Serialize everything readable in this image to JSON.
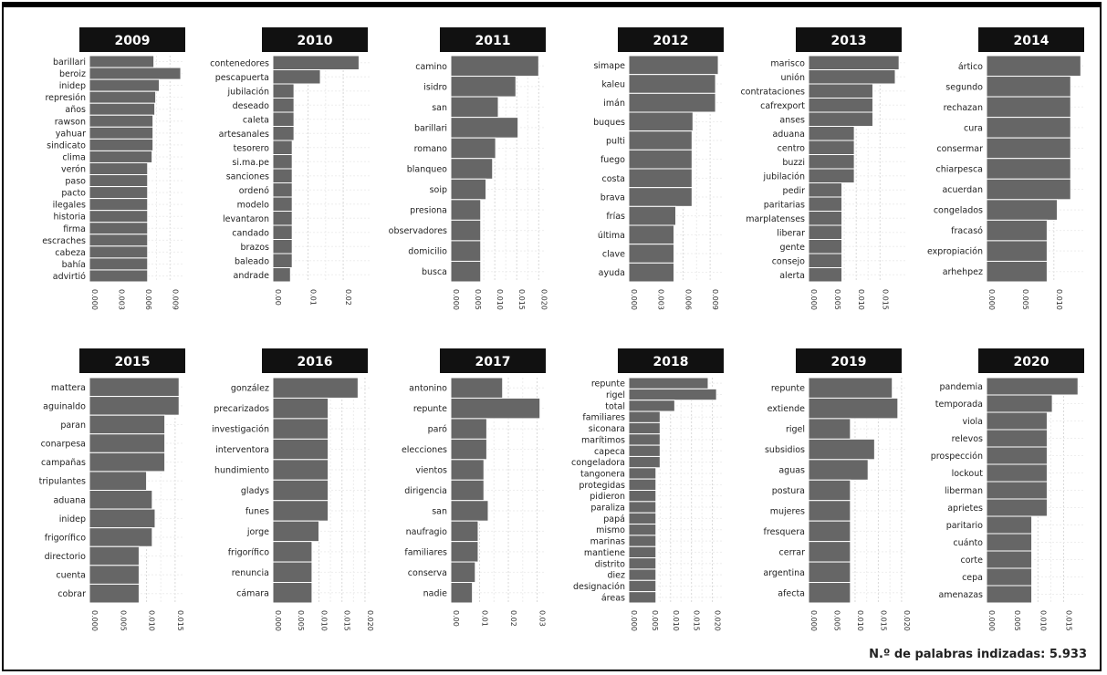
{
  "footer": {
    "label": "N.º de palabras indizadas: 5.933"
  },
  "colors": {
    "bar": "#666666",
    "bar_edge": "#ffffff",
    "title_bg": "#111111",
    "title_fg": "#ffffff",
    "grid": "#d9d9d9"
  },
  "chart_data": [
    {
      "type": "bar",
      "orientation": "horizontal",
      "title": "2009",
      "categories": [
        "barillari",
        "beroiz",
        "inidep",
        "represión",
        "años",
        "rawson",
        "yahuar",
        "sindicato",
        "clima",
        "verón",
        "paso",
        "pacto",
        "ilegales",
        "historia",
        "firma",
        "escraches",
        "cabeza",
        "bahía",
        "advirtió"
      ],
      "values": [
        0.0072,
        0.0102,
        0.0078,
        0.0074,
        0.0073,
        0.0071,
        0.0071,
        0.0071,
        0.007,
        0.0065,
        0.0065,
        0.0065,
        0.0065,
        0.0065,
        0.0065,
        0.0065,
        0.0065,
        0.0065,
        0.0065
      ],
      "ticks": [
        0,
        0.003,
        0.006,
        0.009
      ],
      "tick_labels": [
        "0.000",
        "0.003",
        "0.006",
        "0.009"
      ],
      "xlim": [
        0,
        0.0104
      ]
    },
    {
      "type": "bar",
      "orientation": "horizontal",
      "title": "2010",
      "categories": [
        "contenedores",
        "pescapuerta",
        "jubilación",
        "deseado",
        "caleta",
        "artesanales",
        "tesorero",
        "si.ma.pe",
        "sanciones",
        "ordenó",
        "modelo",
        "levantaron",
        "candado",
        "brazos",
        "baleado",
        "andrade"
      ],
      "values": [
        0.0245,
        0.0135,
        0.006,
        0.006,
        0.006,
        0.006,
        0.0055,
        0.0055,
        0.0055,
        0.0055,
        0.0055,
        0.0055,
        0.0055,
        0.0055,
        0.0055,
        0.005
      ],
      "ticks": [
        0,
        0.01,
        0.02
      ],
      "tick_labels": [
        "0.00",
        "0.01",
        "0.02"
      ],
      "xlim": [
        0,
        0.0275
      ]
    },
    {
      "type": "bar",
      "orientation": "horizontal",
      "title": "2011",
      "categories": [
        "camino",
        "isidro",
        "san",
        "barillari",
        "romano",
        "blanqueo",
        "soip",
        "presiona",
        "observadores",
        "domicilio",
        "busca"
      ],
      "values": [
        0.02,
        0.0148,
        0.0108,
        0.0153,
        0.0102,
        0.0095,
        0.008,
        0.0068,
        0.0068,
        0.0068,
        0.0068
      ],
      "ticks": [
        0,
        0.005,
        0.01,
        0.015,
        0.02
      ],
      "tick_labels": [
        "0.000",
        "0.005",
        "0.010",
        "0.015",
        "0.020"
      ],
      "xlim": [
        0,
        0.0216
      ]
    },
    {
      "type": "bar",
      "orientation": "horizontal",
      "title": "2012",
      "categories": [
        "simape",
        "kaleu",
        "imán",
        "buques",
        "pulti",
        "fuego",
        "costa",
        "brava",
        "frías",
        "última",
        "clave",
        "ayuda"
      ],
      "values": [
        0.0099,
        0.0096,
        0.0096,
        0.0071,
        0.007,
        0.007,
        0.007,
        0.007,
        0.0052,
        0.005,
        0.005,
        0.005
      ],
      "ticks": [
        0,
        0.003,
        0.006,
        0.009
      ],
      "tick_labels": [
        "0.000",
        "0.003",
        "0.006",
        "0.009"
      ],
      "xlim": [
        0,
        0.0104
      ]
    },
    {
      "type": "bar",
      "orientation": "horizontal",
      "title": "2013",
      "categories": [
        "marisco",
        "unión",
        "contrataciones",
        "cafrexport",
        "anses",
        "aduana",
        "centro",
        "buzzi",
        "jubilación",
        "pedir",
        "paritarias",
        "marplatenses",
        "liberar",
        "gente",
        "consejo",
        "alerta"
      ],
      "values": [
        0.019,
        0.0182,
        0.0135,
        0.0135,
        0.0135,
        0.0096,
        0.0096,
        0.0096,
        0.0096,
        0.007,
        0.007,
        0.007,
        0.007,
        0.007,
        0.007,
        0.007
      ],
      "ticks": [
        0,
        0.005,
        0.01,
        0.015
      ],
      "tick_labels": [
        "0.000",
        "0.005",
        "0.010",
        "0.015"
      ],
      "xlim": [
        0,
        0.0205
      ]
    },
    {
      "type": "bar",
      "orientation": "horizontal",
      "title": "2014",
      "categories": [
        "ártico",
        "segundo",
        "rechazan",
        "cura",
        "consermar",
        "chiarpesca",
        "acuerdan",
        "congelados",
        "fracasó",
        "expropiación",
        "arhehpez"
      ],
      "values": [
        0.014,
        0.0125,
        0.0125,
        0.0125,
        0.0125,
        0.0125,
        0.0125,
        0.0105,
        0.009,
        0.009,
        0.009
      ],
      "ticks": [
        0,
        0.005,
        0.01
      ],
      "tick_labels": [
        "0.000",
        "0.005",
        "0.010"
      ],
      "xlim": [
        0,
        0.0145
      ]
    },
    {
      "type": "bar",
      "orientation": "horizontal",
      "title": "2015",
      "categories": [
        "mattera",
        "aguinaldo",
        "paran",
        "conarpesa",
        "campañas",
        "tripulantes",
        "aduana",
        "inidep",
        "frigorífico",
        "directorio",
        "cuenta",
        "cobrar"
      ],
      "values": [
        0.0157,
        0.0157,
        0.0132,
        0.0132,
        0.0132,
        0.01,
        0.011,
        0.0115,
        0.011,
        0.0087,
        0.0087,
        0.0087
      ],
      "ticks": [
        0,
        0.005,
        0.01,
        0.015
      ],
      "tick_labels": [
        "0.000",
        "0.005",
        "0.010",
        "0.015"
      ],
      "xlim": [
        0,
        0.0163
      ]
    },
    {
      "type": "bar",
      "orientation": "horizontal",
      "title": "2016",
      "categories": [
        "gonzález",
        "precarizados",
        "investigación",
        "interventora",
        "hundimiento",
        "gladys",
        "funes",
        "jorge",
        "frigorífico",
        "renuncia",
        "cámara"
      ],
      "values": [
        0.0185,
        0.012,
        0.012,
        0.012,
        0.012,
        0.012,
        0.012,
        0.01,
        0.0085,
        0.0085,
        0.0085
      ],
      "ticks": [
        0,
        0.005,
        0.01,
        0.015,
        0.02
      ],
      "tick_labels": [
        "0.000",
        "0.005",
        "0.010",
        "0.015",
        "0.020"
      ],
      "xlim": [
        0,
        0.021
      ]
    },
    {
      "type": "bar",
      "orientation": "horizontal",
      "title": "2017",
      "categories": [
        "antonino",
        "repunte",
        "paró",
        "elecciones",
        "vientos",
        "dirigencia",
        "san",
        "naufragio",
        "familiares",
        "conserva",
        "nadie"
      ],
      "values": [
        0.018,
        0.031,
        0.0125,
        0.0125,
        0.0115,
        0.0115,
        0.013,
        0.0095,
        0.0095,
        0.0085,
        0.0075
      ],
      "ticks": [
        0,
        0.01,
        0.02,
        0.03
      ],
      "tick_labels": [
        "0.00",
        "0.01",
        "0.02",
        "0.03"
      ],
      "xlim": [
        0,
        0.033
      ]
    },
    {
      "type": "bar",
      "orientation": "horizontal",
      "title": "2018",
      "categories": [
        "repunte",
        "rigel",
        "total",
        "familiares",
        "siconara",
        "marítimos",
        "capeca",
        "congeladora",
        "tangonera",
        "protegidas",
        "pidieron",
        "paraliza",
        "papá",
        "mismo",
        "marinas",
        "mantiene",
        "distrito",
        "diez",
        "designación",
        "áreas"
      ],
      "values": [
        0.019,
        0.021,
        0.011,
        0.0075,
        0.0075,
        0.0075,
        0.0075,
        0.0075,
        0.0065,
        0.0065,
        0.0065,
        0.0065,
        0.0065,
        0.0065,
        0.0065,
        0.0065,
        0.0065,
        0.0065,
        0.0065,
        0.0065
      ],
      "ticks": [
        0,
        0.005,
        0.01,
        0.015,
        0.02
      ],
      "tick_labels": [
        "0.000",
        "0.005",
        "0.010",
        "0.015",
        "0.020"
      ],
      "xlim": [
        0,
        0.0225
      ]
    },
    {
      "type": "bar",
      "orientation": "horizontal",
      "title": "2019",
      "categories": [
        "repunte",
        "extiende",
        "rigel",
        "subsidios",
        "aguas",
        "postura",
        "mujeres",
        "fresquera",
        "cerrar",
        "argentina",
        "afecta"
      ],
      "values": [
        0.018,
        0.0192,
        0.009,
        0.0142,
        0.0128,
        0.009,
        0.009,
        0.009,
        0.009,
        0.009,
        0.009
      ],
      "ticks": [
        0,
        0.005,
        0.01,
        0.015,
        0.02
      ],
      "tick_labels": [
        "0.000",
        "0.005",
        "0.010",
        "0.015",
        "0.020"
      ],
      "xlim": [
        0,
        0.021
      ]
    },
    {
      "type": "bar",
      "orientation": "horizontal",
      "title": "2020",
      "categories": [
        "pandemia",
        "temporada",
        "viola",
        "relevos",
        "prospección",
        "lockout",
        "liberman",
        "aprietes",
        "paritario",
        "cuánto",
        "corte",
        "cepa",
        "amenazas"
      ],
      "values": [
        0.0178,
        0.0128,
        0.0118,
        0.0118,
        0.0118,
        0.0118,
        0.0118,
        0.0118,
        0.0088,
        0.0088,
        0.0088,
        0.0088,
        0.0088
      ],
      "ticks": [
        0,
        0.005,
        0.01,
        0.015
      ],
      "tick_labels": [
        "0.000",
        "0.005",
        "0.010",
        "0.015"
      ],
      "xlim": [
        0,
        0.019
      ]
    }
  ]
}
